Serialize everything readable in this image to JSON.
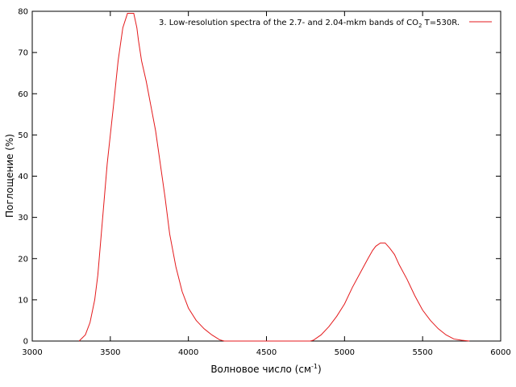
{
  "chart_data": {
    "type": "line",
    "xlabel_main": "Волновое число (см",
    "xlabel_sup": "-1",
    "xlabel_end": ")",
    "ylabel": "Поглощение (%)",
    "xlim": [
      3000,
      6000
    ],
    "ylim": [
      0,
      80
    ],
    "xticks": [
      3000,
      3500,
      4000,
      4500,
      5000,
      5500,
      6000
    ],
    "yticks": [
      0,
      10,
      20,
      30,
      40,
      50,
      60,
      70,
      80
    ],
    "grid": false,
    "legend_position": "top-right",
    "colors": {
      "series": "#e41a1c",
      "axis": "#000000"
    },
    "series": [
      {
        "name_prefix": "3. Low-resolution spectra of the 2.7- and 2.04-mkm  bands of CO",
        "name_sub": "2",
        "name_suffix": " T=530R.",
        "x": [
          3300,
          3340,
          3370,
          3400,
          3420,
          3440,
          3460,
          3480,
          3500,
          3520,
          3550,
          3580,
          3610,
          3630,
          3650,
          3670,
          3680,
          3700,
          3730,
          3760,
          3790,
          3820,
          3850,
          3880,
          3920,
          3960,
          4000,
          4050,
          4100,
          4150,
          4200,
          4230,
          4300,
          4400,
          4500,
          4600,
          4700,
          4780,
          4800,
          4850,
          4900,
          4950,
          5000,
          5050,
          5100,
          5150,
          5180,
          5200,
          5230,
          5260,
          5290,
          5320,
          5350,
          5400,
          5450,
          5500,
          5550,
          5600,
          5650,
          5700,
          5750,
          5800
        ],
        "y": [
          0,
          1.5,
          4.5,
          10,
          16,
          25,
          34,
          43,
          50,
          57,
          68,
          76,
          79.5,
          79.5,
          79.5,
          76,
          73,
          68,
          63,
          57,
          51,
          43,
          35,
          26,
          18,
          12,
          8,
          5,
          3,
          1.5,
          0.3,
          0,
          0,
          0,
          0,
          0,
          0,
          0,
          0.2,
          1.5,
          3.5,
          6,
          9,
          13,
          16.5,
          20,
          22,
          23,
          23.8,
          23.8,
          22.5,
          21,
          18.5,
          15,
          11,
          7.5,
          5,
          3,
          1.5,
          0.5,
          0.2,
          0
        ]
      }
    ]
  }
}
